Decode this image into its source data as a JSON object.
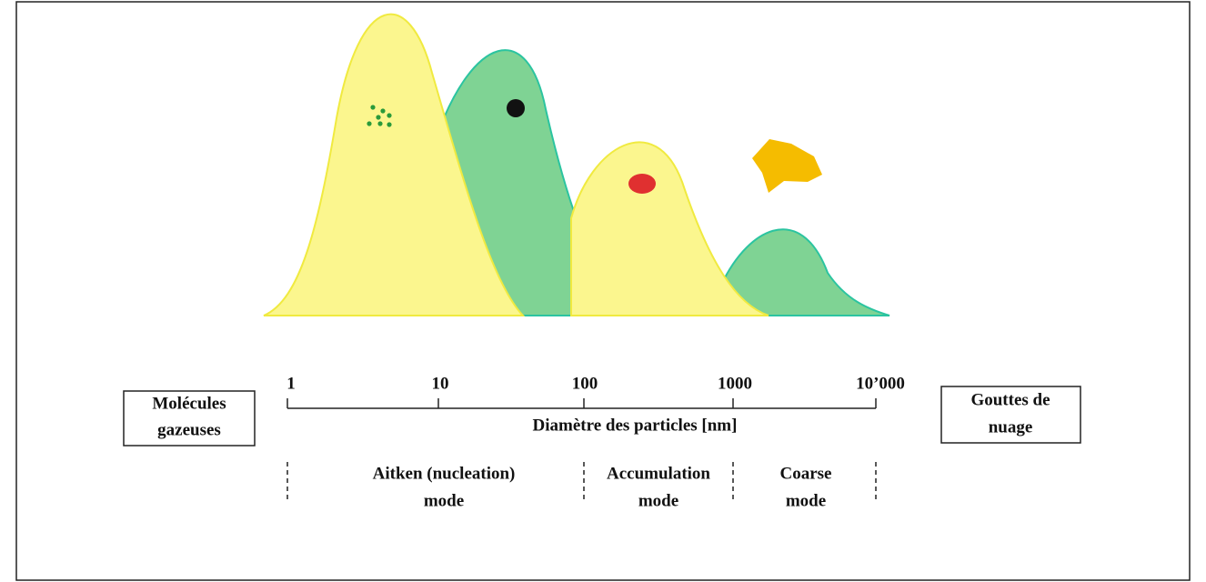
{
  "left_box": [
    "Molécules",
    "gazeuses"
  ],
  "right_box": [
    "Gouttes de",
    "nuage"
  ],
  "axis": {
    "ticks": [
      "1",
      "10",
      "100",
      "1000",
      "10’000"
    ],
    "label": "Diamètre des particles [nm]"
  },
  "modes": [
    [
      "Aitken (nucleation)",
      "mode"
    ],
    [
      "Accumulation",
      "mode"
    ],
    [
      "Coarse",
      "mode"
    ]
  ]
}
